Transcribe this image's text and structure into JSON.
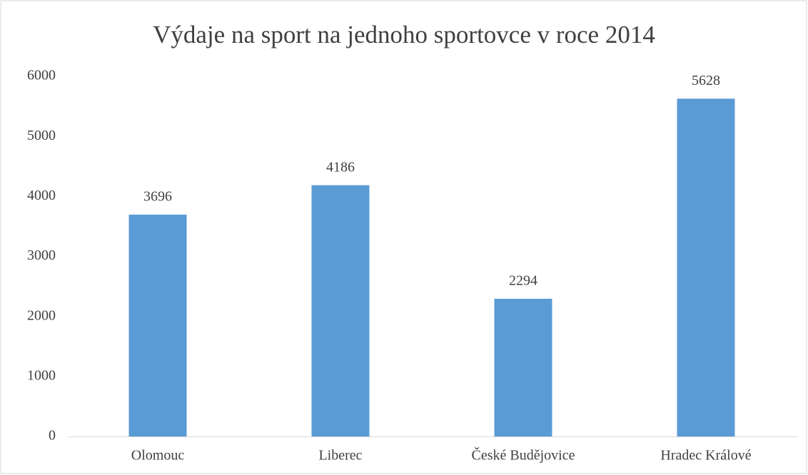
{
  "chart_data": {
    "type": "bar",
    "title": "Výdaje na sport na jednoho sportovce v roce 2014",
    "categories": [
      "Olomouc",
      "Liberec",
      "České Budějovice",
      "Hradec Králové"
    ],
    "values": [
      3696,
      4186,
      2294,
      5628
    ],
    "color": "#5b9bd5",
    "ylim": [
      0,
      6000
    ],
    "yticks": [
      0,
      1000,
      2000,
      3000,
      4000,
      5000,
      6000
    ]
  }
}
